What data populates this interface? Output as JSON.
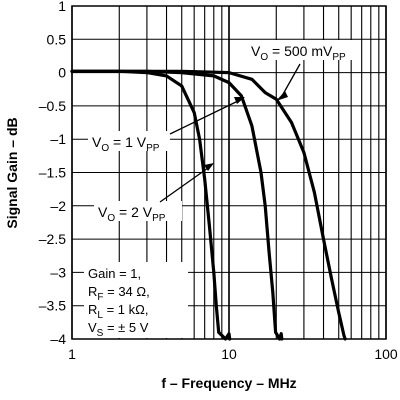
{
  "chart_data": {
    "type": "line",
    "title": "",
    "xlabel": "f – Frequency – MHz",
    "ylabel": "Signal Gain – dB",
    "x_scale": "log",
    "xlim": [
      1,
      100
    ],
    "ylim": [
      -4,
      1
    ],
    "x_ticks": [
      {
        "value": 1,
        "label": "1"
      },
      {
        "value": 10,
        "label": "10"
      },
      {
        "value": 100,
        "label": "100"
      }
    ],
    "y_ticks": [
      {
        "value": 1,
        "label": "1"
      },
      {
        "value": 0.5,
        "label": "0.5"
      },
      {
        "value": 0,
        "label": "0"
      },
      {
        "value": -0.5,
        "label": "–0.5"
      },
      {
        "value": -1,
        "label": "–1"
      },
      {
        "value": -1.5,
        "label": "–1.5"
      },
      {
        "value": -2,
        "label": "–2"
      },
      {
        "value": -2.5,
        "label": "–2.5"
      },
      {
        "value": -3,
        "label": "–3"
      },
      {
        "value": -3.5,
        "label": "–3.5"
      },
      {
        "value": -4,
        "label": "–4"
      }
    ],
    "grid": true,
    "legend": "none (curves labeled by annotations)",
    "series": [
      {
        "points": [
          [
            1,
            0.02
          ],
          [
            2,
            0.02
          ],
          [
            3,
            0.0
          ],
          [
            4,
            -0.05
          ],
          [
            5,
            -0.2
          ],
          [
            6,
            -0.6
          ],
          [
            6.5,
            -1.0
          ],
          [
            7,
            -1.6
          ],
          [
            7.5,
            -2.3
          ],
          [
            8,
            -3.0
          ],
          [
            8.3,
            -3.5
          ],
          [
            8.6,
            -3.9
          ],
          [
            9.5,
            -4.0
          ],
          [
            10,
            -3.92
          ],
          [
            10.1,
            -4.0
          ]
        ]
      },
      {
        "points": [
          [
            1,
            0.02
          ],
          [
            3,
            0.02
          ],
          [
            5,
            0.0
          ],
          [
            8,
            -0.05
          ],
          [
            10,
            -0.15
          ],
          [
            12,
            -0.35
          ],
          [
            14,
            -0.8
          ],
          [
            16,
            -1.5
          ],
          [
            17,
            -2.0
          ],
          [
            18,
            -2.7
          ],
          [
            19,
            -3.3
          ],
          [
            19.8,
            -3.9
          ],
          [
            21,
            -4.0
          ],
          [
            21.5,
            -3.92
          ],
          [
            21.7,
            -4.0
          ]
        ]
      },
      {
        "points": [
          [
            1,
            0.02
          ],
          [
            5,
            0.02
          ],
          [
            10,
            0.0
          ],
          [
            14,
            -0.1
          ],
          [
            17,
            -0.3
          ],
          [
            20,
            -0.4
          ],
          [
            25,
            -0.75
          ],
          [
            30,
            -1.2
          ],
          [
            35,
            -1.8
          ],
          [
            40,
            -2.5
          ],
          [
            45,
            -3.1
          ],
          [
            50,
            -3.6
          ],
          [
            54,
            -3.95
          ],
          [
            55,
            -4.0
          ]
        ]
      }
    ],
    "annotations": [
      {
        "main": "V",
        "sub": "O",
        "rest": " = 500 mV",
        "sub2": "PP"
      },
      {
        "main": "V",
        "sub": "O",
        "rest": " = 1 V",
        "sub2": "PP"
      },
      {
        "main": "V",
        "sub": "O",
        "rest": " = 2 V",
        "sub2": "PP"
      }
    ],
    "conditions": [
      {
        "main": "Gain = 1,",
        "sub": "",
        "rest": ""
      },
      {
        "main": "R",
        "sub": "F",
        "rest": " = 34 Ω,"
      },
      {
        "main": "R",
        "sub": "L",
        "rest": " = 1 kΩ,"
      },
      {
        "main": "V",
        "sub": "S",
        "rest": " = ± 5 V"
      }
    ]
  }
}
